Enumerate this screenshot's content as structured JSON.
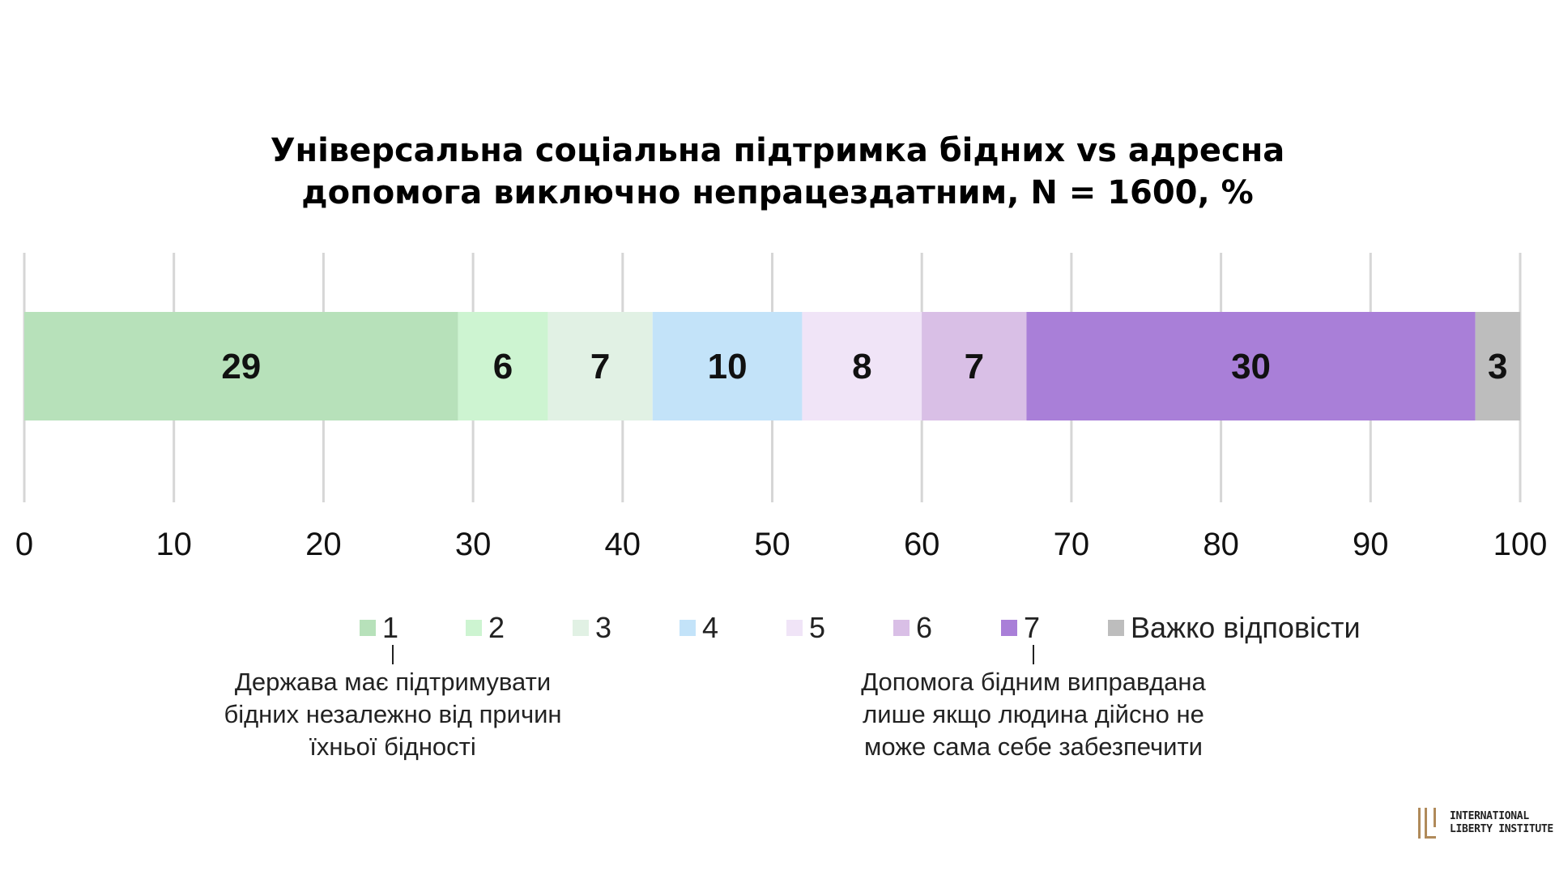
{
  "chart_data": {
    "type": "bar",
    "orientation": "horizontal-stacked",
    "title_lines": [
      "Універсальна соціальна підтримка бідних vs адресна",
      "допомога виключно непрацездатним, N = 1600, %"
    ],
    "xlim": [
      0,
      100
    ],
    "xticks": [
      "0",
      "10",
      "20",
      "30",
      "40",
      "50",
      "60",
      "70",
      "80",
      "90",
      "100"
    ],
    "grid": true,
    "legend_position": "bottom",
    "segments": [
      {
        "name": "1",
        "value": 29,
        "label": "29",
        "color": "#b7e1ba"
      },
      {
        "name": "2",
        "value": 6,
        "label": "6",
        "color": "#cdf4d1"
      },
      {
        "name": "3",
        "value": 7,
        "label": "7",
        "color": "#e1f1e4"
      },
      {
        "name": "4",
        "value": 10,
        "label": "10",
        "color": "#c3e3f9"
      },
      {
        "name": "5",
        "value": 8,
        "label": "8",
        "color": "#f0e4f7"
      },
      {
        "name": "6",
        "value": 7,
        "label": "7",
        "color": "#d9bfe6"
      },
      {
        "name": "7",
        "value": 30,
        "label": "30",
        "color": "#a97fd8"
      },
      {
        "name": "Важко відповісти",
        "value": 3,
        "label": "3",
        "color": "#bdbdbd"
      }
    ]
  },
  "annotations": {
    "left": {
      "lines": [
        "Держава має підтримувати",
        "бідних незалежно від причин",
        "їхньої бідності"
      ]
    },
    "right": {
      "lines": [
        "Допомога бідним виправдана",
        "лише якщо людина дійсно не",
        "може сама себе забезпечити"
      ]
    }
  },
  "logo": {
    "lines": [
      "INTERNATIONAL",
      "LIBERTY INSTITUTE"
    ],
    "color": "#b08a5a"
  }
}
